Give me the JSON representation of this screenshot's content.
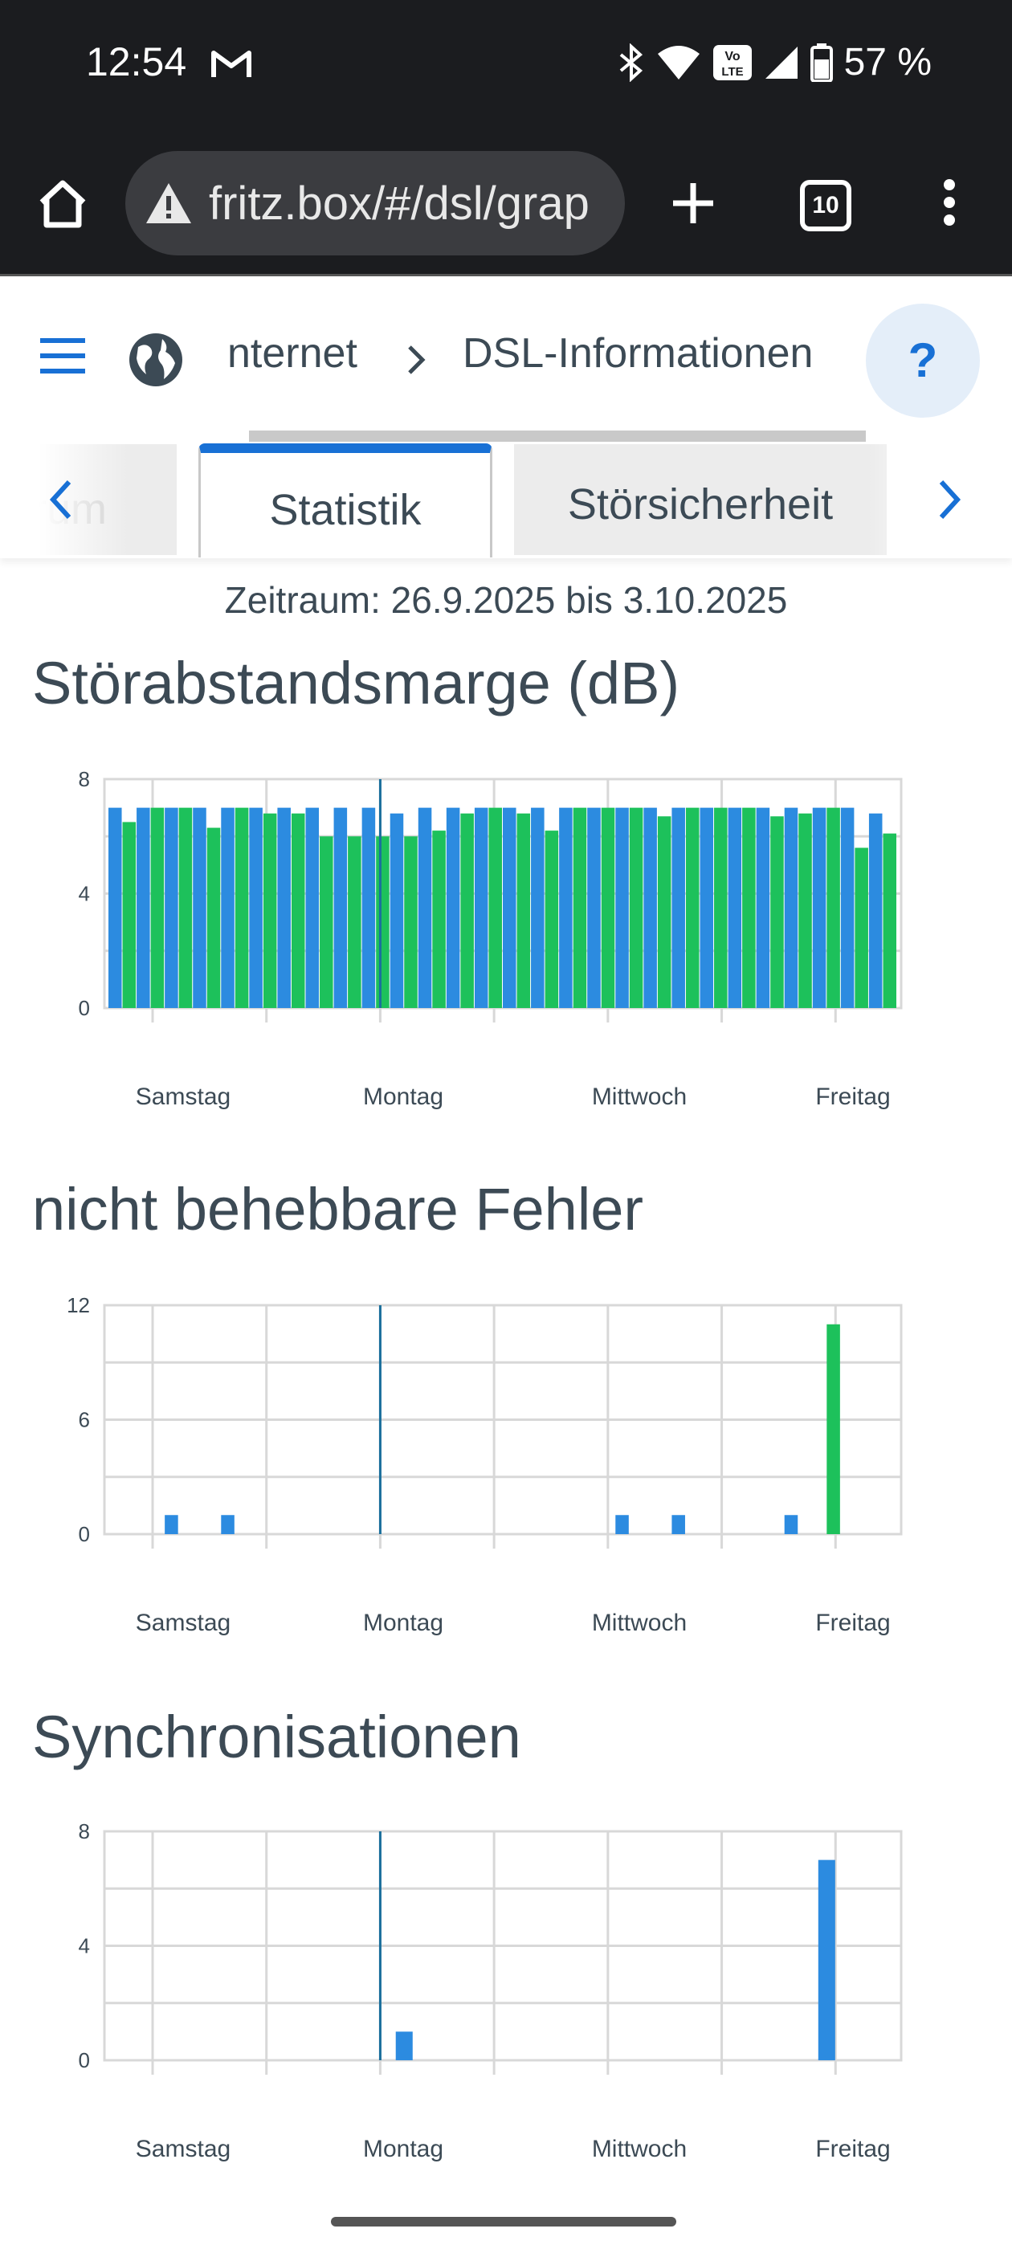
{
  "status_bar": {
    "time": "12:54",
    "battery": "57 %",
    "icons": [
      "gmail-icon",
      "bluetooth-icon",
      "wifi-icon",
      "volte-icon",
      "signal-icon",
      "battery-icon"
    ]
  },
  "browser": {
    "url": "fritz.box/#/dsl/grap",
    "tab_count": "10",
    "icons": [
      "home-icon",
      "warning-icon",
      "plus-icon",
      "tabs-icon",
      "more-icon"
    ]
  },
  "header": {
    "breadcrumb_partial": "nternet",
    "breadcrumb_current": "DSL-Informationen",
    "help": "?"
  },
  "tabs": {
    "left_partial": "rum",
    "active": "Statistik",
    "next": "Störsicherheit"
  },
  "zeitraum": "Zeitraum: 26.9.2025 bis 3.10.2025",
  "colors": {
    "blue": "#2c8be0",
    "green": "#1dc15b",
    "accent": "#1870d5",
    "grid": "#d8d8d8"
  },
  "charts": [
    {
      "title": "Störabstandsmarge (dB)",
      "chart_data": {
        "type": "bar",
        "x_labels": [
          "Samstag",
          "Montag",
          "Mittwoch",
          "Freitag"
        ],
        "y_ticks": [
          "0",
          "4",
          "8"
        ],
        "ylim": [
          0,
          8
        ],
        "series": [
          {
            "values": [
              7,
              7,
              7,
              7,
              7,
              7,
              7,
              7,
              7,
              7,
              6.8,
              7,
              7,
              7,
              7,
              7,
              7,
              7,
              7,
              7,
              7,
              7,
              7,
              7,
              7,
              7,
              7,
              6.8
            ]
          },
          {
            "values": [
              6.5,
              7,
              7,
              6.3,
              7,
              6.8,
              6.8,
              6,
              6,
              6,
              6,
              6.2,
              6.8,
              7,
              6.8,
              6.2,
              7,
              7,
              7,
              6.7,
              7,
              7,
              7,
              6.7,
              6.8,
              7,
              5.6,
              6.1
            ]
          }
        ]
      }
    },
    {
      "title": "nicht behebbare Fehler",
      "chart_data": {
        "type": "bar",
        "x_labels": [
          "Samstag",
          "Montag",
          "Mittwoch",
          "Freitag"
        ],
        "y_ticks": [
          "0",
          "6",
          "12"
        ],
        "ylim": [
          0,
          12
        ],
        "series": [
          {
            "values": [
              0,
              0,
              1,
              0,
              1,
              0,
              0,
              0,
              0,
              0,
              0,
              0,
              0,
              0,
              0,
              0,
              0,
              0,
              1,
              0,
              1,
              0,
              0,
              0,
              1,
              0,
              0,
              0
            ]
          },
          {
            "values": [
              0,
              0,
              0,
              0,
              0,
              0,
              0,
              0,
              0,
              0,
              0,
              0,
              0,
              0,
              0,
              0,
              0,
              0,
              0,
              0,
              0,
              0,
              0,
              0,
              0,
              11,
              0,
              0
            ]
          }
        ]
      }
    },
    {
      "title": "Synchronisationen",
      "chart_data": {
        "type": "bar",
        "x_labels": [
          "Samstag",
          "Montag",
          "Mittwoch",
          "Freitag"
        ],
        "y_ticks": [
          "0",
          "4",
          "8"
        ],
        "ylim": [
          0,
          8
        ],
        "series": [
          {
            "values": [
              0,
              0,
              0,
              0,
              0,
              0,
              0,
              0,
              0,
              0,
              1,
              0,
              0,
              0,
              0,
              0,
              0,
              0,
              0,
              0,
              0,
              0,
              0,
              0,
              0,
              7,
              0,
              0
            ]
          }
        ]
      }
    }
  ]
}
